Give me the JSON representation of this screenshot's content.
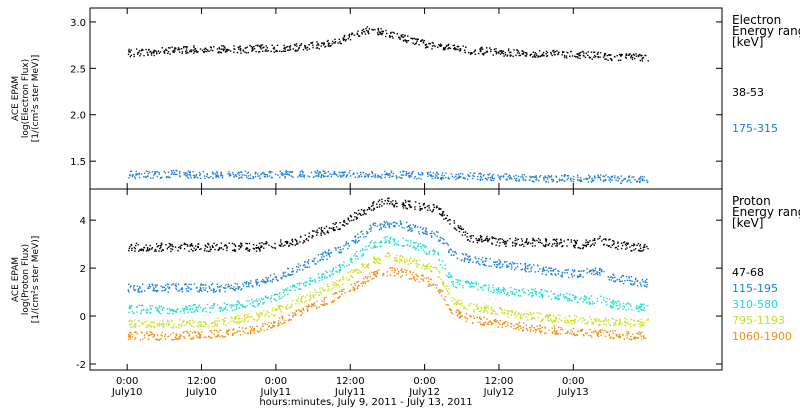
{
  "chart_data": [
    {
      "type": "scatter",
      "panel": "electron",
      "ylabel_lines": [
        "ACE EPAM",
        "log(Electron Flux)",
        "[1/(cm²s ster MeV)]"
      ],
      "ylim": [
        1.2,
        3.15
      ],
      "yticks": [
        1.5,
        2.0,
        2.5,
        3.0
      ],
      "ytick_labels": [
        "1.5",
        "2.0",
        "2.5",
        "3.0"
      ],
      "legend_title": [
        "Electron",
        "Energy ranges",
        "[keV]"
      ],
      "series": [
        {
          "name": "38-53",
          "color": "#000000",
          "values": [
            2.67,
            2.68,
            2.69,
            2.7,
            2.71,
            2.72,
            2.71,
            2.71,
            2.72,
            2.72,
            2.73,
            2.74,
            2.76,
            2.8,
            2.88,
            2.93,
            2.88,
            2.83,
            2.78,
            2.74,
            2.72,
            2.7,
            2.69,
            2.68,
            2.67,
            2.66,
            2.66,
            2.66,
            2.65,
            2.64,
            2.63,
            2.63,
            2.62
          ]
        },
        {
          "name": "175-315",
          "color": "#1a7fd9",
          "values": [
            1.36,
            1.36,
            1.36,
            1.37,
            1.36,
            1.36,
            1.36,
            1.36,
            1.36,
            1.36,
            1.37,
            1.37,
            1.37,
            1.37,
            1.37,
            1.36,
            1.36,
            1.36,
            1.35,
            1.35,
            1.34,
            1.34,
            1.34,
            1.33,
            1.33,
            1.32,
            1.32,
            1.32,
            1.32,
            1.32,
            1.31,
            1.31,
            1.31
          ]
        }
      ]
    },
    {
      "type": "scatter",
      "panel": "proton",
      "ylabel_lines": [
        "ACE EPAM",
        "log(Proton Flux)",
        "[1/(cm²s ster MeV)]"
      ],
      "ylim": [
        -2.25,
        5.3
      ],
      "yticks": [
        -2,
        0,
        2,
        4
      ],
      "ytick_labels": [
        "-2",
        "0",
        "2",
        "4"
      ],
      "legend_title": [
        "Proton",
        "Energy ranges",
        "[keV]"
      ],
      "series": [
        {
          "name": "47-68",
          "color": "#000000",
          "values": [
            2.9,
            2.9,
            2.9,
            2.9,
            2.9,
            2.9,
            2.9,
            2.9,
            2.9,
            3.0,
            3.1,
            3.3,
            3.6,
            3.8,
            4.2,
            4.6,
            4.8,
            4.7,
            4.6,
            4.5,
            3.9,
            3.3,
            3.2,
            3.1,
            3.1,
            3.1,
            3.1,
            3.1,
            3.0,
            3.2,
            3.0,
            2.9,
            2.9
          ]
        },
        {
          "name": "115-195",
          "color": "#1a7fd9",
          "values": [
            1.2,
            1.2,
            1.2,
            1.2,
            1.2,
            1.2,
            1.2,
            1.3,
            1.4,
            1.6,
            1.9,
            2.2,
            2.5,
            2.8,
            3.2,
            3.7,
            3.9,
            3.8,
            3.6,
            3.4,
            2.6,
            2.4,
            2.3,
            2.2,
            2.1,
            2.0,
            1.9,
            1.8,
            1.8,
            1.9,
            1.6,
            1.5,
            1.4
          ]
        },
        {
          "name": "310-580",
          "color": "#20dcd0",
          "values": [
            0.3,
            0.3,
            0.3,
            0.3,
            0.35,
            0.35,
            0.4,
            0.5,
            0.6,
            0.8,
            1.1,
            1.4,
            1.7,
            2.0,
            2.5,
            3.0,
            3.2,
            3.1,
            2.9,
            2.6,
            1.4,
            1.3,
            1.2,
            1.1,
            1.0,
            1.0,
            0.9,
            0.8,
            0.7,
            0.7,
            0.5,
            0.4,
            0.35
          ]
        },
        {
          "name": "795-1193",
          "color": "#c8e020",
          "values": [
            -0.3,
            -0.3,
            -0.3,
            -0.3,
            -0.25,
            -0.25,
            -0.2,
            -0.1,
            0.0,
            0.2,
            0.5,
            0.8,
            1.1,
            1.4,
            1.9,
            2.3,
            2.5,
            2.4,
            2.2,
            1.9,
            0.7,
            0.4,
            0.3,
            0.2,
            0.1,
            0.0,
            -0.05,
            -0.1,
            -0.15,
            -0.2,
            -0.2,
            -0.25,
            -0.25
          ]
        },
        {
          "name": "1060-1900",
          "color": "#f08c10",
          "values": [
            -0.8,
            -0.8,
            -0.8,
            -0.8,
            -0.75,
            -0.75,
            -0.7,
            -0.6,
            -0.5,
            -0.3,
            0.0,
            0.3,
            0.6,
            0.9,
            1.3,
            1.7,
            1.9,
            1.8,
            1.6,
            1.3,
            0.2,
            -0.1,
            -0.2,
            -0.3,
            -0.4,
            -0.5,
            -0.55,
            -0.6,
            -0.65,
            -0.7,
            -0.75,
            -0.8,
            -0.8
          ]
        }
      ]
    }
  ],
  "x_axis": {
    "xlim_hours": [
      -6,
      96
    ],
    "data_end_hour": 84,
    "ticks": [
      {
        "hour": 0,
        "time": "0:00",
        "date": "July10"
      },
      {
        "hour": 12,
        "time": "12:00",
        "date": "July10"
      },
      {
        "hour": 24,
        "time": "0:00",
        "date": "July11"
      },
      {
        "hour": 36,
        "time": "12:00",
        "date": "July11"
      },
      {
        "hour": 48,
        "time": "0:00",
        "date": "July12"
      },
      {
        "hour": 60,
        "time": "12:00",
        "date": "July12"
      },
      {
        "hour": 72,
        "time": "0:00",
        "date": "July13"
      }
    ],
    "label": "hours:minutes, July  9, 2011 - July 13, 2011"
  }
}
